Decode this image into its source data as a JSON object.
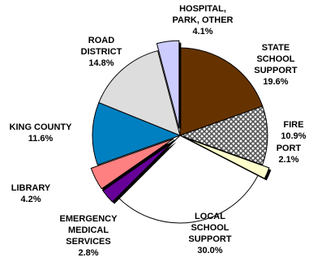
{
  "chart_data": {
    "type": "pie",
    "title": "",
    "slices": [
      {
        "label": "STATE SCHOOL SUPPORT",
        "label_lines": [
          "STATE",
          "SCHOOL",
          "SUPPORT"
        ],
        "value": 19.6,
        "pct_text": "19.6%",
        "color": "#663300",
        "pattern": "solid",
        "exploded": false
      },
      {
        "label": "FIRE",
        "label_lines": [
          "FIRE"
        ],
        "value": 10.9,
        "pct_text": "10.9%",
        "color": "#808080",
        "pattern": "checker",
        "exploded": false
      },
      {
        "label": "PORT",
        "label_lines": [
          "PORT"
        ],
        "value": 2.1,
        "pct_text": "2.1%",
        "color": "#ffffcc",
        "pattern": "solid",
        "exploded": true
      },
      {
        "label": "LOCAL SCHOOL SUPPORT",
        "label_lines": [
          "LOCAL",
          "SCHOOL",
          "SUPPORT"
        ],
        "value": 30.0,
        "pct_text": "30.0%",
        "color": "#ffffff",
        "pattern": "solid",
        "exploded": false
      },
      {
        "label": "EMERGENCY MEDICAL SERVICES",
        "label_lines": [
          "EMERGENCY",
          "MEDICAL",
          "SERVICES"
        ],
        "value": 2.8,
        "pct_text": "2.8%",
        "color": "#660099",
        "pattern": "solid",
        "exploded": true
      },
      {
        "label": "LIBRARY",
        "label_lines": [
          "LIBRARY"
        ],
        "value": 4.2,
        "pct_text": "4.2%",
        "color": "#ff8080",
        "pattern": "solid",
        "exploded": true
      },
      {
        "label": "KING COUNTY",
        "label_lines": [
          "KING COUNTY"
        ],
        "value": 11.6,
        "pct_text": "11.6%",
        "color": "#0080c0",
        "pattern": "solid",
        "exploded": false
      },
      {
        "label": "ROAD DISTRICT",
        "label_lines": [
          "ROAD",
          "DISTRICT"
        ],
        "value": 14.8,
        "pct_text": "14.8%",
        "color": "#dddddd",
        "pattern": "solid",
        "exploded": false
      },
      {
        "label": "HOSPITAL, PARK, OTHER",
        "label_lines": [
          "HOSPITAL,",
          "PARK, OTHER"
        ],
        "value": 4.1,
        "pct_text": "4.1%",
        "color": "#ccccff",
        "pattern": "solid",
        "exploded": true
      }
    ],
    "start_angle_deg": 0,
    "direction": "clockwise",
    "legend": "none"
  }
}
